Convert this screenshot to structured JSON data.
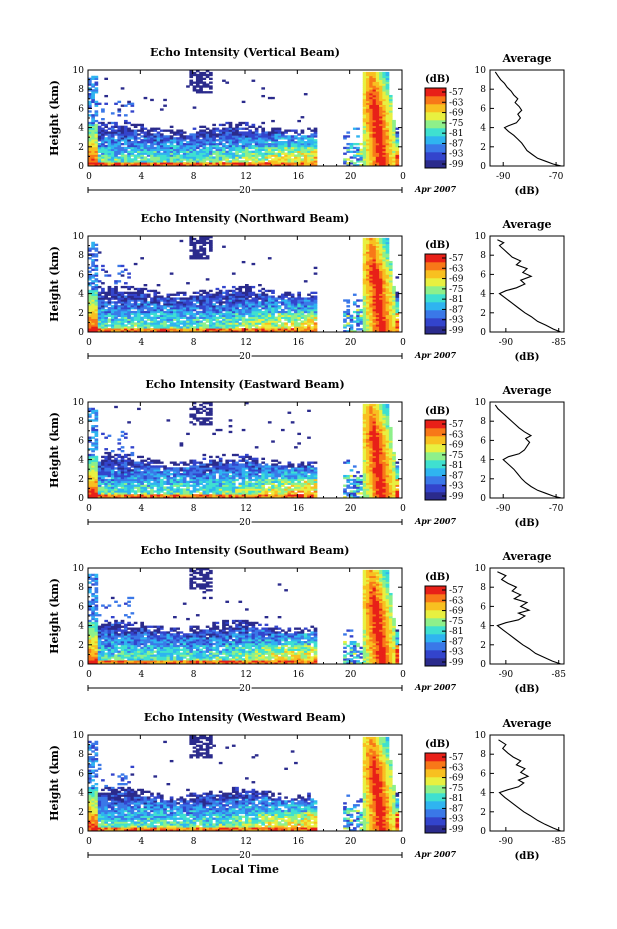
{
  "chart_data": [
    {
      "type": "heatmap",
      "title": "Echo Intensity (Vertical Beam)",
      "ylabel": "Height (km)",
      "xlabel": "",
      "x_ticks": [
        "0",
        "4",
        "8",
        "12",
        "16",
        "20",
        "0"
      ],
      "x_range_hours": [
        0,
        24
      ],
      "y_ticks": [
        "0",
        "2",
        "4",
        "6",
        "8",
        "10"
      ],
      "y_range_km": [
        0,
        10
      ],
      "date_label": "20",
      "month_label": "Apr 2007",
      "colorbar_unit": "(dB)",
      "colorbar_ticks": [
        "-57",
        "-63",
        "-69",
        "-75",
        "-81",
        "-87",
        "-93",
        "-99"
      ],
      "colorscale": [
        "#2b2b8c",
        "#3344cc",
        "#3a78e8",
        "#2fb4f0",
        "#3fe0d0",
        "#8ef08a",
        "#e8f040",
        "#f8c020",
        "#f87818",
        "#e82018"
      ],
      "average": {
        "title": "Average",
        "xlabel": "(dB)",
        "x_ticks": [
          "-90",
          "-70"
        ],
        "x_range": [
          -95,
          -67
        ],
        "profile": [
          {
            "x": -68,
            "y": 0.0
          },
          {
            "x": -71,
            "y": 0.2
          },
          {
            "x": -74,
            "y": 0.5
          },
          {
            "x": -77,
            "y": 0.8
          },
          {
            "x": -79,
            "y": 1.2
          },
          {
            "x": -81,
            "y": 1.6
          },
          {
            "x": -82,
            "y": 2.0
          },
          {
            "x": -83,
            "y": 2.4
          },
          {
            "x": -84.5,
            "y": 2.8
          },
          {
            "x": -86,
            "y": 3.2
          },
          {
            "x": -88,
            "y": 3.6
          },
          {
            "x": -89.5,
            "y": 4.0
          },
          {
            "x": -88,
            "y": 4.2
          },
          {
            "x": -85,
            "y": 4.5
          },
          {
            "x": -83.5,
            "y": 5.0
          },
          {
            "x": -84.5,
            "y": 5.4
          },
          {
            "x": -83,
            "y": 5.8
          },
          {
            "x": -84,
            "y": 6.2
          },
          {
            "x": -85.5,
            "y": 6.6
          },
          {
            "x": -84.5,
            "y": 7.0
          },
          {
            "x": -86,
            "y": 7.4
          },
          {
            "x": -87,
            "y": 7.8
          },
          {
            "x": -88.5,
            "y": 8.2
          },
          {
            "x": -89.5,
            "y": 8.6
          },
          {
            "x": -91,
            "y": 9.0
          },
          {
            "x": -92,
            "y": 9.4
          },
          {
            "x": -93,
            "y": 9.8
          }
        ]
      }
    },
    {
      "type": "heatmap",
      "title": "Echo Intensity (Northward Beam)",
      "ylabel": "Height (km)",
      "xlabel": "",
      "x_ticks": [
        "0",
        "4",
        "8",
        "12",
        "16",
        "20",
        "0"
      ],
      "x_range_hours": [
        0,
        24
      ],
      "y_ticks": [
        "0",
        "2",
        "4",
        "6",
        "8",
        "10"
      ],
      "y_range_km": [
        0,
        10
      ],
      "date_label": "20",
      "month_label": "Apr 2007",
      "colorbar_unit": "(dB)",
      "colorbar_ticks": [
        "-57",
        "-63",
        "-69",
        "-75",
        "-81",
        "-87",
        "-93",
        "-99"
      ],
      "colorscale": [
        "#2b2b8c",
        "#3344cc",
        "#3a78e8",
        "#2fb4f0",
        "#3fe0d0",
        "#8ef08a",
        "#e8f040",
        "#f8c020",
        "#f87818",
        "#e82018"
      ],
      "average": {
        "title": "Average",
        "xlabel": "(dB)",
        "x_ticks": [
          "-90",
          "-85"
        ],
        "x_range": [
          -91.5,
          -84.5
        ],
        "profile": [
          {
            "x": -84.8,
            "y": 0.0
          },
          {
            "x": -85.5,
            "y": 0.3
          },
          {
            "x": -86.2,
            "y": 0.7
          },
          {
            "x": -87.0,
            "y": 1.1
          },
          {
            "x": -87.6,
            "y": 1.6
          },
          {
            "x": -88.2,
            "y": 2.0
          },
          {
            "x": -88.8,
            "y": 2.5
          },
          {
            "x": -89.4,
            "y": 3.0
          },
          {
            "x": -90.0,
            "y": 3.5
          },
          {
            "x": -90.6,
            "y": 4.0
          },
          {
            "x": -90.0,
            "y": 4.3
          },
          {
            "x": -89.0,
            "y": 4.6
          },
          {
            "x": -88.2,
            "y": 5.0
          },
          {
            "x": -88.6,
            "y": 5.4
          },
          {
            "x": -87.6,
            "y": 5.8
          },
          {
            "x": -88.4,
            "y": 6.2
          },
          {
            "x": -88.0,
            "y": 6.6
          },
          {
            "x": -89.0,
            "y": 7.0
          },
          {
            "x": -88.6,
            "y": 7.4
          },
          {
            "x": -89.4,
            "y": 7.8
          },
          {
            "x": -89.8,
            "y": 8.2
          },
          {
            "x": -90.2,
            "y": 8.6
          },
          {
            "x": -90.6,
            "y": 9.0
          },
          {
            "x": -90.2,
            "y": 9.3
          },
          {
            "x": -90.8,
            "y": 9.6
          }
        ]
      }
    },
    {
      "type": "heatmap",
      "title": "Echo Intensity (Eastward Beam)",
      "ylabel": "Height (km)",
      "xlabel": "",
      "x_ticks": [
        "0",
        "4",
        "8",
        "12",
        "16",
        "20",
        "0"
      ],
      "x_range_hours": [
        0,
        24
      ],
      "y_ticks": [
        "0",
        "2",
        "4",
        "6",
        "8",
        "10"
      ],
      "y_range_km": [
        0,
        10
      ],
      "date_label": "20",
      "month_label": "Apr 2007",
      "colorbar_unit": "(dB)",
      "colorbar_ticks": [
        "-57",
        "-63",
        "-69",
        "-75",
        "-81",
        "-87",
        "-93",
        "-99"
      ],
      "colorscale": [
        "#2b2b8c",
        "#3344cc",
        "#3a78e8",
        "#2fb4f0",
        "#3fe0d0",
        "#8ef08a",
        "#e8f040",
        "#f8c020",
        "#f87818",
        "#e82018"
      ],
      "average": {
        "title": "Average",
        "xlabel": "(dB)",
        "x_ticks": [
          "-90",
          "-70"
        ],
        "x_range": [
          -95,
          -67
        ],
        "profile": [
          {
            "x": -68,
            "y": 0.0
          },
          {
            "x": -71,
            "y": 0.2
          },
          {
            "x": -74,
            "y": 0.5
          },
          {
            "x": -77,
            "y": 0.8
          },
          {
            "x": -79.5,
            "y": 1.2
          },
          {
            "x": -81.5,
            "y": 1.6
          },
          {
            "x": -83,
            "y": 2.0
          },
          {
            "x": -84.5,
            "y": 2.5
          },
          {
            "x": -86,
            "y": 3.0
          },
          {
            "x": -88,
            "y": 3.5
          },
          {
            "x": -90,
            "y": 4.0
          },
          {
            "x": -88,
            "y": 4.3
          },
          {
            "x": -84,
            "y": 4.6
          },
          {
            "x": -82,
            "y": 5.0
          },
          {
            "x": -81,
            "y": 5.4
          },
          {
            "x": -80,
            "y": 5.8
          },
          {
            "x": -81.5,
            "y": 6.2
          },
          {
            "x": -79.5,
            "y": 6.5
          },
          {
            "x": -82,
            "y": 6.9
          },
          {
            "x": -84,
            "y": 7.3
          },
          {
            "x": -86,
            "y": 7.8
          },
          {
            "x": -88,
            "y": 8.3
          },
          {
            "x": -90,
            "y": 8.8
          },
          {
            "x": -92,
            "y": 9.3
          },
          {
            "x": -93,
            "y": 9.7
          }
        ]
      }
    },
    {
      "type": "heatmap",
      "title": "Echo Intensity (Southward Beam)",
      "ylabel": "Height (km)",
      "xlabel": "",
      "x_ticks": [
        "0",
        "4",
        "8",
        "12",
        "16",
        "20",
        "0"
      ],
      "x_range_hours": [
        0,
        24
      ],
      "y_ticks": [
        "0",
        "2",
        "4",
        "6",
        "8",
        "10"
      ],
      "y_range_km": [
        0,
        10
      ],
      "date_label": "20",
      "month_label": "Apr 2007",
      "colorbar_unit": "(dB)",
      "colorbar_ticks": [
        "-57",
        "-63",
        "-69",
        "-75",
        "-81",
        "-87",
        "-93",
        "-99"
      ],
      "colorscale": [
        "#2b2b8c",
        "#3344cc",
        "#3a78e8",
        "#2fb4f0",
        "#3fe0d0",
        "#8ef08a",
        "#e8f040",
        "#f8c020",
        "#f87818",
        "#e82018"
      ],
      "average": {
        "title": "Average",
        "xlabel": "(dB)",
        "x_ticks": [
          "-90",
          "-85"
        ],
        "x_range": [
          -91.5,
          -84.5
        ],
        "profile": [
          {
            "x": -84.8,
            "y": 0.0
          },
          {
            "x": -85.6,
            "y": 0.3
          },
          {
            "x": -86.4,
            "y": 0.7
          },
          {
            "x": -87.2,
            "y": 1.1
          },
          {
            "x": -87.8,
            "y": 1.6
          },
          {
            "x": -88.4,
            "y": 2.0
          },
          {
            "x": -89.0,
            "y": 2.5
          },
          {
            "x": -89.6,
            "y": 3.0
          },
          {
            "x": -90.2,
            "y": 3.5
          },
          {
            "x": -90.8,
            "y": 4.0
          },
          {
            "x": -90.0,
            "y": 4.3
          },
          {
            "x": -88.8,
            "y": 4.6
          },
          {
            "x": -88.2,
            "y": 5.0
          },
          {
            "x": -88.8,
            "y": 5.3
          },
          {
            "x": -87.8,
            "y": 5.6
          },
          {
            "x": -88.6,
            "y": 6.0
          },
          {
            "x": -88.0,
            "y": 6.4
          },
          {
            "x": -89.2,
            "y": 6.8
          },
          {
            "x": -88.6,
            "y": 7.2
          },
          {
            "x": -89.4,
            "y": 7.6
          },
          {
            "x": -89.0,
            "y": 8.0
          },
          {
            "x": -89.8,
            "y": 8.4
          },
          {
            "x": -90.4,
            "y": 8.8
          },
          {
            "x": -90.0,
            "y": 9.2
          },
          {
            "x": -90.8,
            "y": 9.6
          }
        ]
      }
    },
    {
      "type": "heatmap",
      "title": "Echo Intensity (Westward Beam)",
      "ylabel": "Height (km)",
      "xlabel": "Local Time",
      "x_ticks": [
        "0",
        "4",
        "8",
        "12",
        "16",
        "20",
        "0"
      ],
      "x_range_hours": [
        0,
        24
      ],
      "y_ticks": [
        "0",
        "2",
        "4",
        "6",
        "8",
        "10"
      ],
      "y_range_km": [
        0,
        10
      ],
      "date_label": "20",
      "month_label": "Apr 2007",
      "colorbar_unit": "(dB)",
      "colorbar_ticks": [
        "-57",
        "-63",
        "-69",
        "-75",
        "-81",
        "-87",
        "-93",
        "-99"
      ],
      "colorscale": [
        "#2b2b8c",
        "#3344cc",
        "#3a78e8",
        "#2fb4f0",
        "#3fe0d0",
        "#8ef08a",
        "#e8f040",
        "#f8c020",
        "#f87818",
        "#e82018"
      ],
      "average": {
        "title": "Average",
        "xlabel": "(dB)",
        "x_ticks": [
          "-90",
          "-85"
        ],
        "x_range": [
          -91.5,
          -84.5
        ],
        "profile": [
          {
            "x": -84.8,
            "y": 0.0
          },
          {
            "x": -85.5,
            "y": 0.3
          },
          {
            "x": -86.3,
            "y": 0.7
          },
          {
            "x": -87.0,
            "y": 1.1
          },
          {
            "x": -87.7,
            "y": 1.6
          },
          {
            "x": -88.3,
            "y": 2.0
          },
          {
            "x": -88.9,
            "y": 2.5
          },
          {
            "x": -89.5,
            "y": 3.0
          },
          {
            "x": -90.1,
            "y": 3.5
          },
          {
            "x": -90.6,
            "y": 4.0
          },
          {
            "x": -89.8,
            "y": 4.3
          },
          {
            "x": -88.8,
            "y": 4.6
          },
          {
            "x": -88.3,
            "y": 5.0
          },
          {
            "x": -88.8,
            "y": 5.3
          },
          {
            "x": -87.9,
            "y": 5.7
          },
          {
            "x": -88.6,
            "y": 6.1
          },
          {
            "x": -88.2,
            "y": 6.5
          },
          {
            "x": -89.0,
            "y": 6.9
          },
          {
            "x": -88.6,
            "y": 7.3
          },
          {
            "x": -89.3,
            "y": 7.7
          },
          {
            "x": -89.8,
            "y": 8.1
          },
          {
            "x": -90.3,
            "y": 8.6
          },
          {
            "x": -90.0,
            "y": 9.0
          },
          {
            "x": -90.7,
            "y": 9.5
          }
        ]
      }
    }
  ]
}
